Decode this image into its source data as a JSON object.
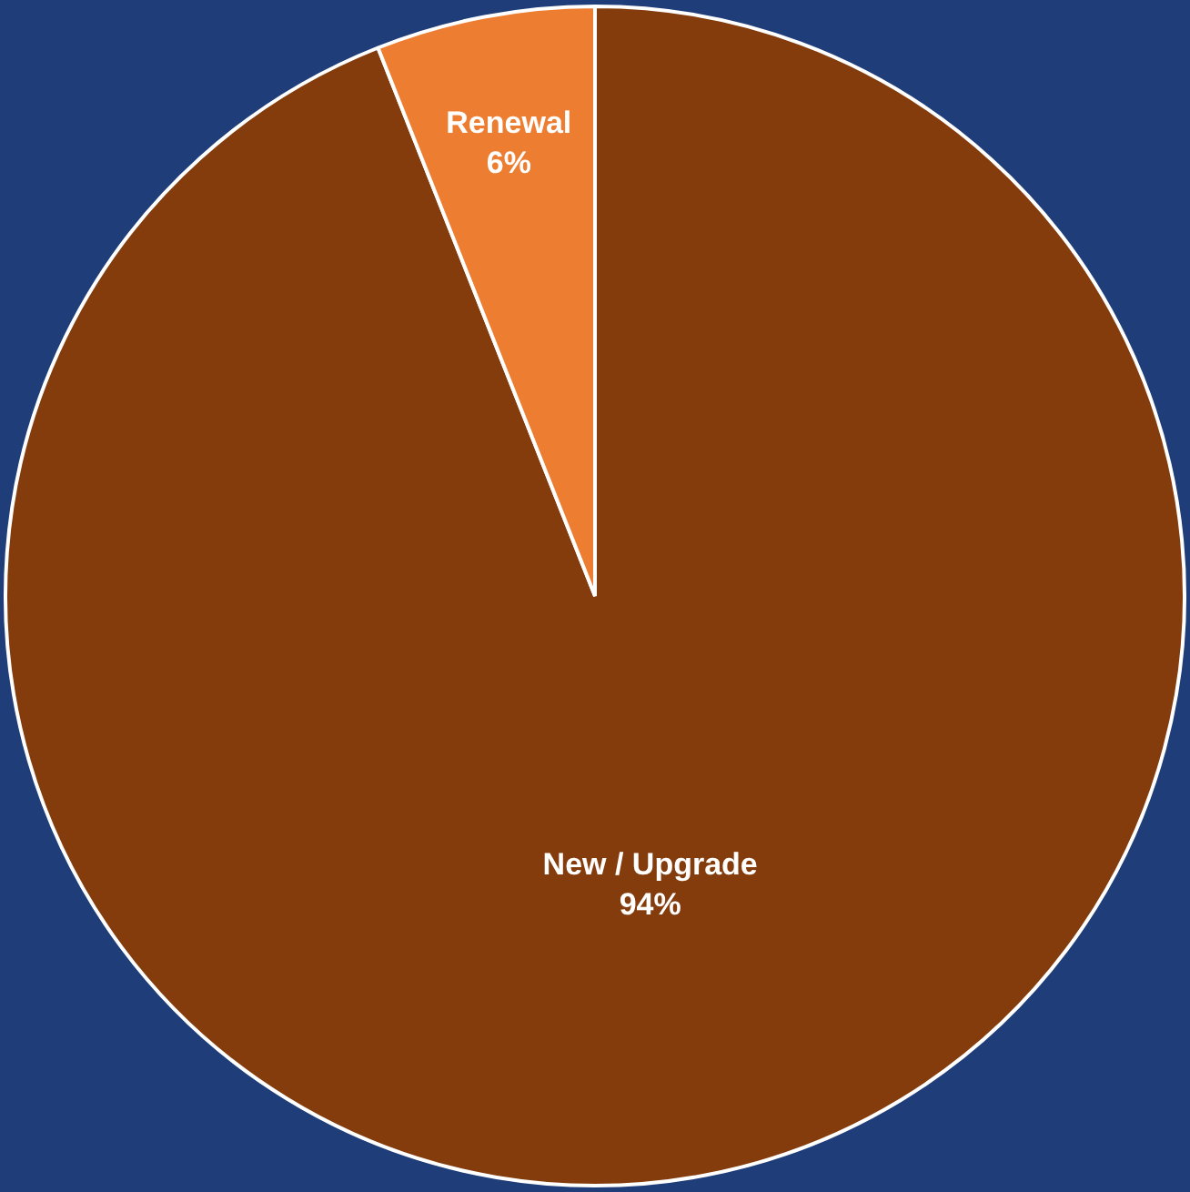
{
  "chart_data": {
    "type": "pie",
    "categories": [
      "New / Upgrade",
      "Renewal"
    ],
    "values": [
      94,
      6
    ],
    "colors": [
      "#843c0c",
      "#ed7d31"
    ],
    "value_labels": [
      "94%",
      "6%"
    ],
    "legend": false
  }
}
